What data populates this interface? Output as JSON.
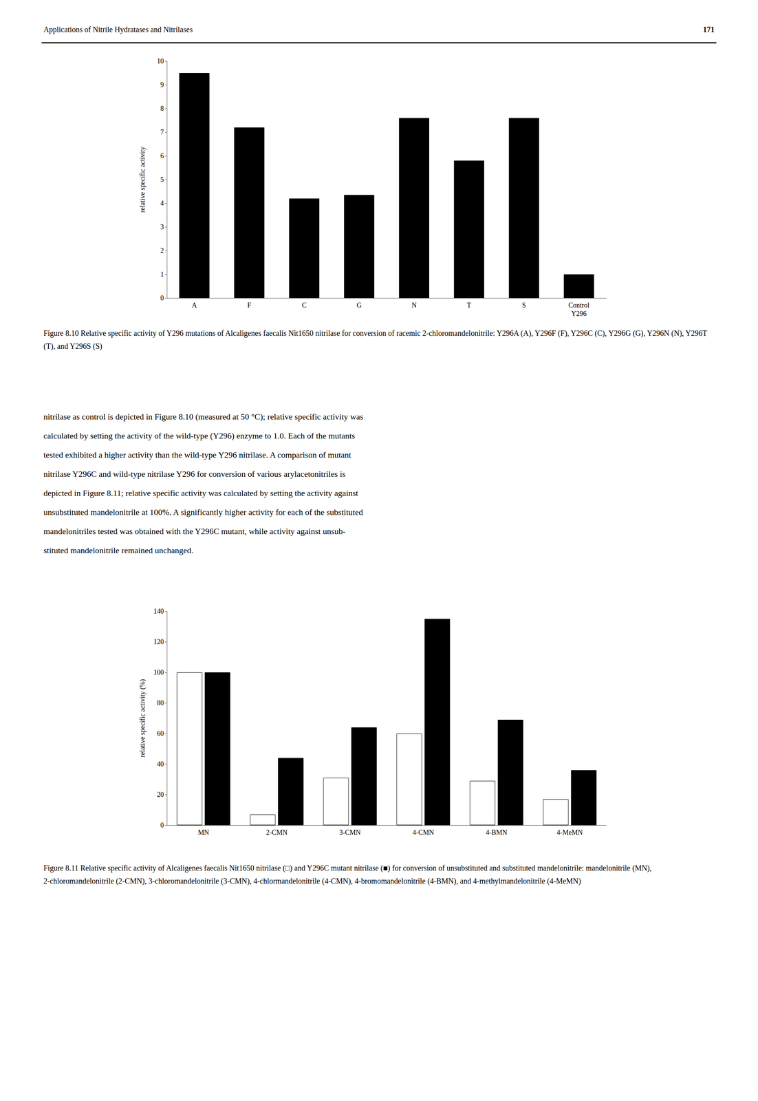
{
  "chart_data": [
    {
      "type": "bar",
      "title": "Figure 8.10 Relative specific activity of Y296 mutations of Alcaligenes faecalis Nit1650 nitrilase for conversion of racemic 2-chloromandelonitrile: Y296A (A), Y296F (F), Y296C (C), Y296G (G), Y296N (N), Y296T (T), and Y296S (S)",
      "annotations": [
        "Applications of Nitrile Hydratases and Nitrilases",
        "171",
        "nitrilase as control is depicted in Figure 8.10 (measured at 50 °C); relative specific activity was",
        "calculated by setting the activity of the wild-type (Y296) enzyme to 1.0. Each of the mutants",
        "tested exhibited a higher activity than the wild-type Y296 nitrilase. A comparison of mutant",
        "nitrilase Y296C and wild-type nitrilase Y296 for conversion of various arylacetonitriles is",
        "depicted in Figure 8.11; relative specific activity was calculated by setting the activity against",
        "unsubstituted mandelonitrile at 100%. A significantly higher activity for each of the substituted",
        "mandelonitriles tested was obtained with the Y296C mutant, while activity against unsub-",
        "stituted mandelonitrile remained unchanged."
      ],
      "categories": [
        "A",
        "F",
        "C",
        "G",
        "N",
        "T",
        "S",
        "Control\nY296"
      ],
      "values": [
        9.5,
        7.2,
        4.2,
        4.35,
        7.6,
        5.8,
        7.6,
        1.0
      ],
      "color": "#000000",
      "ylabel": "relative specific activity",
      "ylim": [
        0,
        10
      ],
      "yticks": [
        0,
        1,
        2,
        3,
        4,
        5,
        6,
        7,
        8,
        9,
        10
      ],
      "grid": false
    },
    {
      "type": "bar",
      "title": "Figure 8.11 Relative specific activity of Alcaligenes faecalis Nit1650 nitrilase (□) and Y296C mutant nitrilase (■) for conversion of unsubstituted and substituted mandelonitrile: mandelonitrile (MN), 2-chloromandelonitrile (2-CMN), 3-chloromandelonitrile (3-CMN), 4-chlormandelonitrile (4-CMN), 4-bromomandelonitrile (4-BMN), and 4-methylmandelonitrile (4-MeMN)",
      "categories": [
        "MN",
        "2-CMN",
        "3-CMN",
        "4-CMN",
        "4-BMN",
        "4-MeMN"
      ],
      "series": [
        {
          "color": "#ffffff",
          "values": [
            100,
            7,
            31,
            60,
            29,
            17
          ]
        },
        {
          "color": "#000000",
          "values": [
            100,
            44,
            64,
            135,
            69,
            36
          ]
        }
      ],
      "ylabel": "relative specific activity (%)",
      "ylim": [
        0,
        140
      ],
      "yticks": [
        0,
        20,
        40,
        60,
        80,
        100,
        120,
        140
      ],
      "grid": false
    }
  ]
}
